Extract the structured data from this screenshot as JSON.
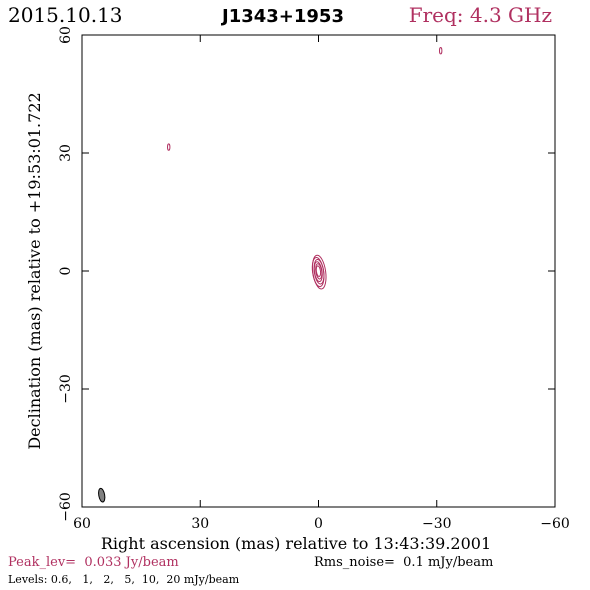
{
  "header": {
    "date": "2015.10.13",
    "source": "J1343+1953",
    "freq": "Freq: 4.3 GHz"
  },
  "chart_data": {
    "type": "contour",
    "title": "J1343+1953",
    "xlabel": "Right ascension (mas) relative to 13:43:39.2001",
    "ylabel": "Declination (mas) relative to +19:53:01.722",
    "xlim": [
      60,
      -60
    ],
    "ylim": [
      -60,
      60
    ],
    "xticks": [
      60,
      30,
      0,
      -30,
      -60
    ],
    "yticks": [
      60,
      30,
      0,
      -30,
      -60
    ],
    "xtick_labels": [
      "60",
      "30",
      "0",
      "−30",
      "−60"
    ],
    "ytick_labels": [
      "60",
      "30",
      "0",
      "−30",
      "−60"
    ],
    "contour_color": "#b03060",
    "beam_color": "#808080",
    "components": [
      {
        "x": 0.0,
        "y": 0.0,
        "contour_levels": 6,
        "shape": "elongated north-south"
      },
      {
        "x": 38.0,
        "y": 31.5,
        "contour_levels": 1,
        "shape": "small"
      },
      {
        "x": -31.0,
        "y": 56.0,
        "contour_levels": 1,
        "shape": "small"
      }
    ],
    "beam": {
      "x": 55.0,
      "y": -57.0,
      "major_mas": 3.5,
      "minor_mas": 1.5
    }
  },
  "footer": {
    "peak": "Peak_lev=  0.033 Jy/beam",
    "rms": "Rms_noise=  0.1 mJy/beam",
    "levels": "Levels: 0.6,   1,   2,   5,  10,  20 mJy/beam"
  }
}
